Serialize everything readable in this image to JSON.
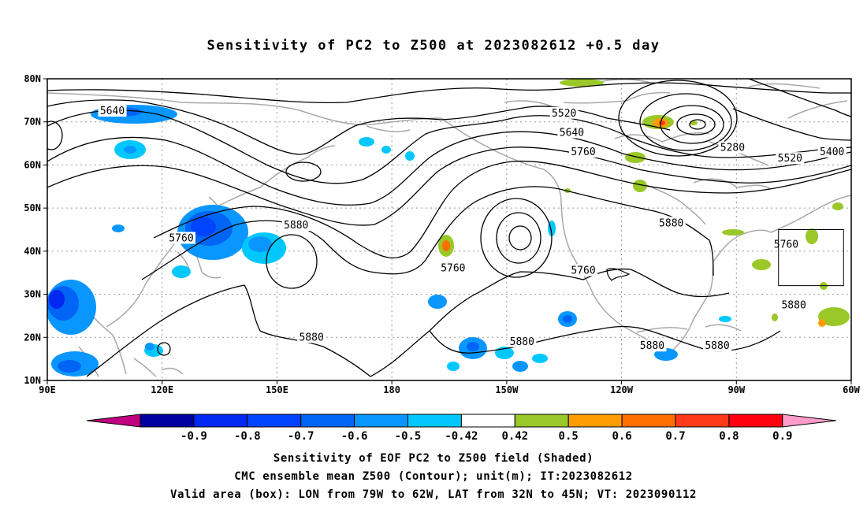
{
  "title": "Sensitivity of PC2 to Z500 at 2023082612 +0.5 day",
  "map": {
    "lon_range": [
      90,
      300
    ],
    "lat_range": [
      10,
      80
    ],
    "lon_ticks": [
      {
        "lon": 90,
        "label": "90E"
      },
      {
        "lon": 120,
        "label": "120E"
      },
      {
        "lon": 150,
        "label": "150E"
      },
      {
        "lon": 180,
        "label": "180"
      },
      {
        "lon": 210,
        "label": "150W"
      },
      {
        "lon": 240,
        "label": "120W"
      },
      {
        "lon": 270,
        "label": "90W"
      },
      {
        "lon": 300,
        "label": "60W"
      }
    ],
    "lat_ticks": [
      {
        "lat": 80,
        "label": "80N"
      },
      {
        "lat": 70,
        "label": "70N"
      },
      {
        "lat": 60,
        "label": "60N"
      },
      {
        "lat": 50,
        "label": "50N"
      },
      {
        "lat": 40,
        "label": "40N"
      },
      {
        "lat": 30,
        "label": "30N"
      },
      {
        "lat": 20,
        "label": "20N"
      },
      {
        "lat": 10,
        "label": "10N"
      }
    ],
    "grid": true,
    "valid_box": {
      "lon_min": 281,
      "lon_max": 298,
      "lat_min": 32,
      "lat_max": 45
    },
    "contour_labels": [
      {
        "text": "5640",
        "lon": 107,
        "lat": 72.5
      },
      {
        "text": "5520",
        "lon": 225,
        "lat": 72
      },
      {
        "text": "5640",
        "lon": 227,
        "lat": 67.5
      },
      {
        "text": "5760",
        "lon": 230,
        "lat": 63
      },
      {
        "text": "5280",
        "lon": 269,
        "lat": 64
      },
      {
        "text": "5400",
        "lon": 295,
        "lat": 63
      },
      {
        "text": "5520",
        "lon": 284,
        "lat": 61.5
      },
      {
        "text": "5760",
        "lon": 125,
        "lat": 43
      },
      {
        "text": "5880",
        "lon": 155,
        "lat": 46
      },
      {
        "text": "5760",
        "lon": 196,
        "lat": 36
      },
      {
        "text": "5760",
        "lon": 230,
        "lat": 35.5
      },
      {
        "text": "5880",
        "lon": 253,
        "lat": 46.5
      },
      {
        "text": "5760",
        "lon": 283,
        "lat": 41.5
      },
      {
        "text": "5880",
        "lon": 285,
        "lat": 27.5
      },
      {
        "text": "5880",
        "lon": 159,
        "lat": 20
      },
      {
        "text": "5880",
        "lon": 214,
        "lat": 19
      },
      {
        "text": "5880",
        "lon": 248,
        "lat": 18
      },
      {
        "text": "5880",
        "lon": 265,
        "lat": 18
      }
    ]
  },
  "colorbar": {
    "labels": [
      "-0.9",
      "-0.8",
      "-0.7",
      "-0.6",
      "-0.5",
      "-0.42",
      "0.42",
      "0.5",
      "0.6",
      "0.7",
      "0.8",
      "0.9"
    ],
    "colors": [
      "#0000a0",
      "#0028f0",
      "#0044ff",
      "#0064f4",
      "#0a96ff",
      "#00c8ff",
      "#ffffff",
      "#9ac828",
      "#ff9d00",
      "#ff6e00",
      "#ff3a18",
      "#ff0010"
    ],
    "low_arrow": "#c0007e",
    "high_arrow": "#ff9ccb"
  },
  "captions": [
    "Sensitivity of EOF PC2 to Z500 field (Shaded)",
    "CMC ensemble mean Z500 (Contour); unit(m); IT:2023082612",
    "Valid area (box): LON from 79W to 62W, LAT from 32N to 45N; VT: 2023090112"
  ]
}
